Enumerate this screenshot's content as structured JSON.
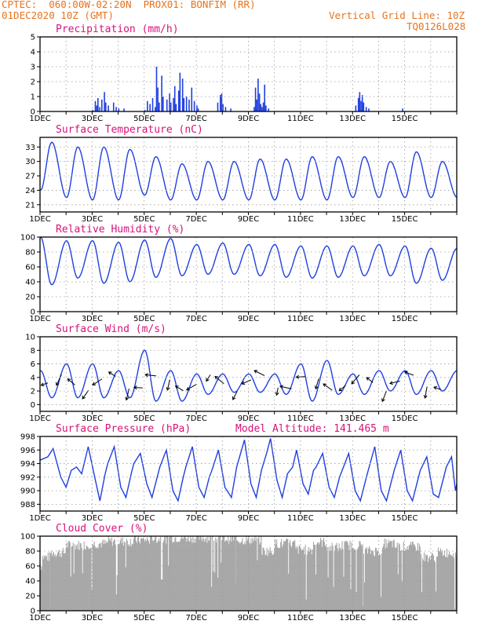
{
  "header": {
    "line1": "CPTEC:  060:00W-02:20N  PROX01: BONFIM (RR)",
    "line2": "01DEC2020 10Z (GMT)",
    "grid_note": "Vertical Grid Line: 10Z",
    "code": "TQ0126L028"
  },
  "colors": {
    "header": "#e8731c",
    "title": "#d8127a",
    "line": "#1f3fe0",
    "cloud": "#a8a8a8"
  },
  "chart_data": [
    {
      "id": "precip",
      "type": "bar",
      "title": "Precipitation (mm/h)",
      "xlabels": [
        "1DEC",
        "3DEC",
        "5DEC",
        "7DEC",
        "9DEC",
        "11DEC",
        "13DEC",
        "15DEC"
      ],
      "ylim": [
        0,
        5
      ],
      "yticks": [
        0,
        1,
        2,
        3,
        4,
        5
      ],
      "grid": true,
      "bars": [
        [
          2.0,
          0.1
        ],
        [
          2.1,
          0.7
        ],
        [
          2.15,
          0.4
        ],
        [
          2.2,
          0.9
        ],
        [
          2.27,
          0.3
        ],
        [
          2.35,
          0.8
        ],
        [
          2.45,
          1.3
        ],
        [
          2.5,
          0.6
        ],
        [
          2.6,
          0.4
        ],
        [
          2.8,
          0.6
        ],
        [
          2.9,
          0.3
        ],
        [
          3.0,
          0.2
        ],
        [
          3.2,
          0.2
        ],
        [
          4.0,
          0.1
        ],
        [
          4.1,
          0.7
        ],
        [
          4.2,
          0.5
        ],
        [
          4.3,
          0.9
        ],
        [
          4.4,
          0.3
        ],
        [
          4.45,
          3.0
        ],
        [
          4.5,
          1.6
        ],
        [
          4.55,
          0.6
        ],
        [
          4.65,
          2.4
        ],
        [
          4.7,
          1.0
        ],
        [
          4.85,
          0.8
        ],
        [
          4.95,
          1.2
        ],
        [
          5.0,
          0.6
        ],
        [
          5.1,
          0.9
        ],
        [
          5.15,
          1.7
        ],
        [
          5.2,
          0.5
        ],
        [
          5.3,
          1.4
        ],
        [
          5.35,
          2.6
        ],
        [
          5.45,
          2.2
        ],
        [
          5.5,
          0.9
        ],
        [
          5.6,
          1.0
        ],
        [
          5.7,
          0.8
        ],
        [
          5.8,
          1.6
        ],
        [
          5.9,
          0.7
        ],
        [
          6.0,
          0.4
        ],
        [
          6.05,
          0.2
        ],
        [
          6.8,
          0.6
        ],
        [
          6.9,
          1.1
        ],
        [
          6.95,
          1.2
        ],
        [
          7.0,
          0.5
        ],
        [
          7.1,
          0.3
        ],
        [
          7.3,
          0.2
        ],
        [
          8.2,
          0.3
        ],
        [
          8.25,
          1.6
        ],
        [
          8.3,
          0.8
        ],
        [
          8.35,
          2.2
        ],
        [
          8.4,
          1.2
        ],
        [
          8.45,
          0.5
        ],
        [
          8.5,
          0.3
        ],
        [
          8.55,
          0.6
        ],
        [
          8.6,
          1.8
        ],
        [
          8.65,
          0.4
        ],
        [
          8.75,
          0.2
        ],
        [
          12.1,
          0.4
        ],
        [
          12.2,
          0.9
        ],
        [
          12.25,
          1.3
        ],
        [
          12.3,
          0.7
        ],
        [
          12.35,
          1.1
        ],
        [
          12.4,
          0.6
        ],
        [
          12.5,
          0.3
        ],
        [
          12.6,
          0.2
        ],
        [
          13.9,
          0.2
        ]
      ]
    },
    {
      "id": "temp",
      "type": "line",
      "title": "Surface Temperature (nC)",
      "xlabels": [
        "1DEC",
        "3DEC",
        "5DEC",
        "7DEC",
        "9DEC",
        "11DEC",
        "13DEC",
        "15DEC"
      ],
      "ylim": [
        19.5,
        35
      ],
      "yticks": [
        21,
        24,
        27,
        30,
        33
      ],
      "grid": true,
      "daily": [
        [
          24,
          34
        ],
        [
          22.5,
          33
        ],
        [
          22,
          33
        ],
        [
          22,
          32.5
        ],
        [
          23,
          31
        ],
        [
          22,
          29.5
        ],
        [
          22,
          30
        ],
        [
          22,
          30
        ],
        [
          22,
          30.5
        ],
        [
          22,
          30.5
        ],
        [
          22,
          31
        ],
        [
          22,
          31
        ],
        [
          22.5,
          31
        ],
        [
          22.5,
          30
        ],
        [
          22.5,
          32
        ],
        [
          22.5,
          30
        ]
      ]
    },
    {
      "id": "rh",
      "type": "line",
      "title": "Relative Humidity (%)",
      "xlabels": [
        "1DEC",
        "3DEC",
        "5DEC",
        "7DEC",
        "9DEC",
        "11DEC",
        "13DEC",
        "15DEC"
      ],
      "ylim": [
        0,
        100
      ],
      "yticks": [
        0,
        20,
        40,
        60,
        80,
        100
      ],
      "grid": true,
      "daily": [
        [
          100,
          36
        ],
        [
          95,
          45
        ],
        [
          95,
          38
        ],
        [
          93,
          40
        ],
        [
          96,
          46
        ],
        [
          98,
          48
        ],
        [
          90,
          50
        ],
        [
          92,
          50
        ],
        [
          90,
          48
        ],
        [
          90,
          46
        ],
        [
          88,
          45
        ],
        [
          88,
          46
        ],
        [
          88,
          48
        ],
        [
          90,
          48
        ],
        [
          88,
          38
        ],
        [
          85,
          42
        ]
      ]
    },
    {
      "id": "wind",
      "type": "line",
      "title": "Surface Wind (m/s)",
      "xlabels": [
        "1DEC",
        "3DEC",
        "5DEC",
        "7DEC",
        "9DEC",
        "11DEC",
        "13DEC",
        "15DEC"
      ],
      "ylim": [
        -1,
        10
      ],
      "yticks": [
        0,
        2,
        4,
        6,
        8,
        10
      ],
      "grid": true,
      "daily": [
        [
          5,
          1
        ],
        [
          6,
          1
        ],
        [
          6,
          1
        ],
        [
          5,
          1
        ],
        [
          8,
          0.5
        ],
        [
          5,
          0.5
        ],
        [
          4.5,
          1.5
        ],
        [
          4.5,
          1.8
        ],
        [
          4.5,
          1.8
        ],
        [
          4.5,
          1.5
        ],
        [
          6,
          0.5
        ],
        [
          6.5,
          1.5
        ],
        [
          4.5,
          1.5
        ],
        [
          5,
          2
        ],
        [
          5,
          1.5
        ],
        [
          5,
          2
        ]
      ]
    },
    {
      "id": "pres",
      "type": "line",
      "title": "Surface Pressure (hPa)",
      "annotation": "Model Altitude: 141.465 m",
      "xlabels": [
        "1DEC",
        "3DEC",
        "5DEC",
        "7DEC",
        "9DEC",
        "11DEC",
        "13DEC",
        "15DEC"
      ],
      "ylim": [
        987,
        998
      ],
      "yticks": [
        988,
        990,
        992,
        994,
        996,
        998
      ],
      "grid": true,
      "series": [
        [
          0,
          994.5
        ],
        [
          0.3,
          995
        ],
        [
          0.5,
          996.2
        ],
        [
          0.8,
          992
        ],
        [
          1,
          990.5
        ],
        [
          1.2,
          993
        ],
        [
          1.4,
          993.5
        ],
        [
          1.6,
          992.5
        ],
        [
          1.85,
          996.5
        ],
        [
          2.1,
          992
        ],
        [
          2.3,
          988.5
        ],
        [
          2.5,
          992.5
        ],
        [
          2.6,
          994
        ],
        [
          2.85,
          996.5
        ],
        [
          3.1,
          990.5
        ],
        [
          3.3,
          989
        ],
        [
          3.5,
          992.5
        ],
        [
          3.6,
          994
        ],
        [
          3.85,
          995.5
        ],
        [
          4.1,
          991
        ],
        [
          4.3,
          989
        ],
        [
          4.5,
          992
        ],
        [
          4.6,
          993.5
        ],
        [
          4.85,
          996
        ],
        [
          5.1,
          990
        ],
        [
          5.3,
          988.5
        ],
        [
          5.5,
          992
        ],
        [
          5.6,
          993.5
        ],
        [
          5.85,
          996.5
        ],
        [
          6.1,
          990.5
        ],
        [
          6.3,
          989
        ],
        [
          6.5,
          992
        ],
        [
          6.6,
          993
        ],
        [
          6.85,
          996
        ],
        [
          7.1,
          990.5
        ],
        [
          7.35,
          989
        ],
        [
          7.55,
          993.5
        ],
        [
          7.85,
          997.5
        ],
        [
          8.1,
          991
        ],
        [
          8.3,
          989
        ],
        [
          8.5,
          993
        ],
        [
          8.7,
          995.5
        ],
        [
          8.85,
          997.7
        ],
        [
          9.1,
          991.5
        ],
        [
          9.3,
          989
        ],
        [
          9.5,
          992.5
        ],
        [
          9.7,
          993.5
        ],
        [
          9.85,
          996
        ],
        [
          10.1,
          991
        ],
        [
          10.3,
          989.5
        ],
        [
          10.5,
          993
        ],
        [
          10.6,
          993.5
        ],
        [
          10.85,
          995.5
        ],
        [
          11.1,
          990.5
        ],
        [
          11.3,
          989
        ],
        [
          11.5,
          992
        ],
        [
          11.6,
          993
        ],
        [
          11.85,
          995.5
        ],
        [
          12.1,
          990
        ],
        [
          12.3,
          988.5
        ],
        [
          12.5,
          991.5
        ],
        [
          12.6,
          993
        ],
        [
          12.85,
          996.5
        ],
        [
          13.1,
          990
        ],
        [
          13.3,
          988.5
        ],
        [
          13.5,
          991.5
        ],
        [
          13.6,
          993
        ],
        [
          13.85,
          996
        ],
        [
          14.1,
          990
        ],
        [
          14.3,
          988.5
        ],
        [
          14.5,
          991.5
        ],
        [
          14.6,
          993
        ],
        [
          14.85,
          995
        ],
        [
          15.1,
          989.5
        ],
        [
          15.3,
          989
        ],
        [
          15.5,
          992
        ],
        [
          15.6,
          993.5
        ],
        [
          15.8,
          995
        ],
        [
          15.95,
          990
        ],
        [
          16,
          991
        ]
      ]
    },
    {
      "id": "cloud",
      "type": "bar",
      "title": "Cloud Cover (%)",
      "xlabels": [
        "1DEC",
        "3DEC",
        "5DEC",
        "7DEC",
        "9DEC",
        "11DEC",
        "13DEC",
        "15DEC"
      ],
      "ylim": [
        0,
        100
      ],
      "yticks": [
        0,
        20,
        40,
        60,
        80,
        100
      ],
      "grid": true,
      "segments": [
        [
          0,
          0.1,
          60
        ],
        [
          0.1,
          0.4,
          72
        ],
        [
          0.4,
          1.0,
          78
        ],
        [
          1.0,
          1.9,
          88
        ],
        [
          1.9,
          2.6,
          90
        ],
        [
          2.6,
          3.6,
          93
        ],
        [
          3.6,
          4.3,
          95
        ],
        [
          4.3,
          5.0,
          97
        ],
        [
          5.0,
          6.5,
          98
        ],
        [
          6.5,
          7.5,
          97
        ],
        [
          7.5,
          8.5,
          95
        ],
        [
          8.5,
          9.0,
          80
        ],
        [
          9.0,
          9.8,
          90
        ],
        [
          9.8,
          10.5,
          82
        ],
        [
          10.5,
          11.0,
          92
        ],
        [
          11.0,
          11.6,
          85
        ],
        [
          11.6,
          12.4,
          88
        ],
        [
          12.4,
          13.2,
          80
        ],
        [
          13.2,
          13.6,
          90
        ],
        [
          13.6,
          14.6,
          86
        ],
        [
          14.6,
          15.2,
          72
        ],
        [
          15.2,
          16.0,
          78
        ]
      ]
    }
  ]
}
